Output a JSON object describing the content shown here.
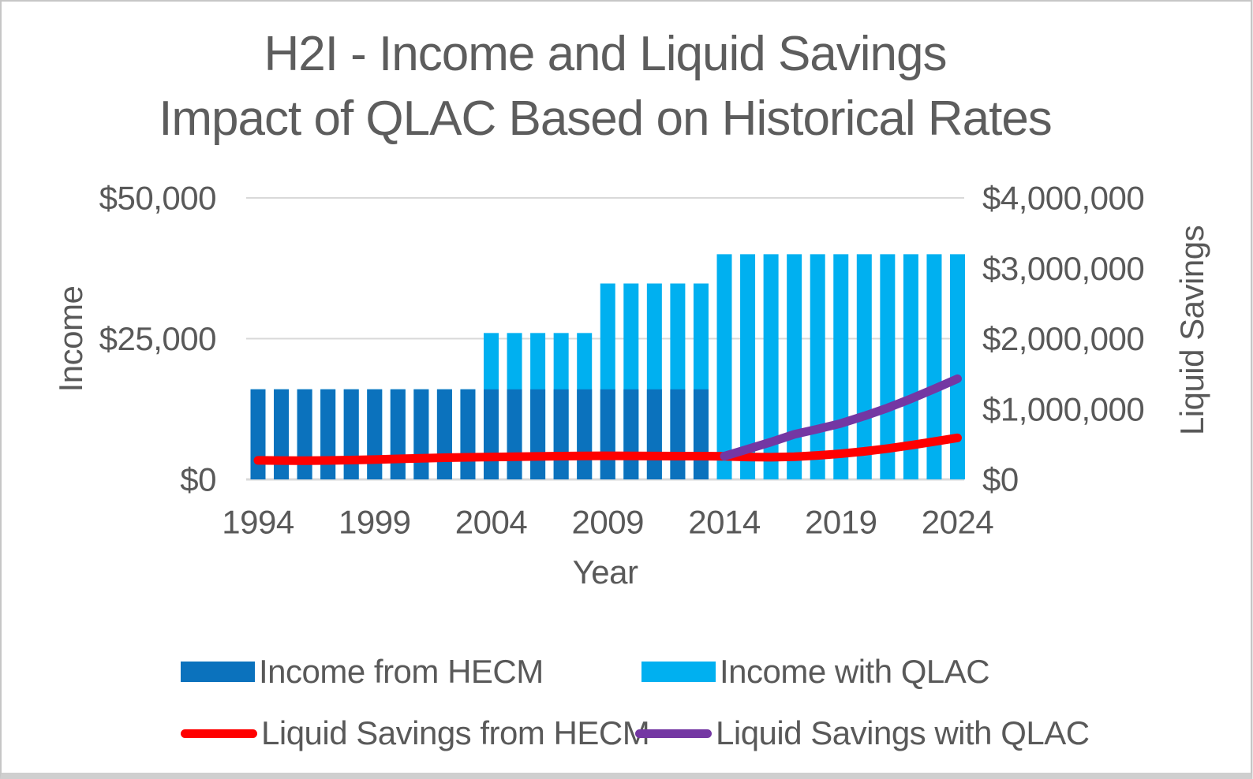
{
  "title": {
    "line1": "H2I - Income and Liquid Savings",
    "line2": "Impact of QLAC Based on Historical Rates"
  },
  "chart_data": {
    "type": "combo-bar-line",
    "title": "H2I - Income and Liquid Savings Impact of QLAC Based on Historical Rates",
    "grid": "horizontal-only",
    "legend_position": "bottom",
    "x": {
      "label": "Year",
      "years": [
        1994,
        1995,
        1996,
        1997,
        1998,
        1999,
        2000,
        2001,
        2002,
        2003,
        2004,
        2005,
        2006,
        2007,
        2008,
        2009,
        2010,
        2011,
        2012,
        2013,
        2014,
        2015,
        2016,
        2017,
        2018,
        2019,
        2020,
        2021,
        2022,
        2023,
        2024
      ],
      "tick_years": [
        1994,
        1999,
        2004,
        2009,
        2014,
        2019,
        2024
      ]
    },
    "y_left": {
      "label": "Income",
      "range": [
        0,
        50000
      ],
      "gridline_values": [
        0,
        25000,
        50000
      ],
      "ticks": [
        {
          "value": 0,
          "label": "$0"
        },
        {
          "value": 25000,
          "label": "$25,000"
        },
        {
          "value": 50000,
          "label": "$50,000"
        }
      ]
    },
    "y_right": {
      "label": "Liquid Savings",
      "range": [
        0,
        4000000
      ],
      "ticks": [
        {
          "value": 0,
          "label": "$0"
        },
        {
          "value": 1000000,
          "label": "$1,000,000"
        },
        {
          "value": 2000000,
          "label": "$2,000,000"
        },
        {
          "value": 3000000,
          "label": "$3,000,000"
        },
        {
          "value": 4000000,
          "label": "$4,000,000"
        }
      ]
    },
    "series": [
      {
        "name": "Income from HECM",
        "type": "bar",
        "axis": "left",
        "color": "#0B72BD",
        "values": [
          16000,
          16000,
          16000,
          16000,
          16000,
          16000,
          16000,
          16000,
          16000,
          16000,
          16000,
          16000,
          16000,
          16000,
          16000,
          16000,
          16000,
          16000,
          16000,
          16000,
          0,
          0,
          0,
          0,
          0,
          0,
          0,
          0,
          0,
          0,
          0
        ]
      },
      {
        "name": "Income with QLAC",
        "type": "bar",
        "axis": "left",
        "color": "#00B0F0",
        "values": [
          16000,
          16000,
          16000,
          16000,
          16000,
          16000,
          16000,
          16000,
          16000,
          16000,
          26000,
          26000,
          26000,
          26000,
          26000,
          34800,
          34800,
          34800,
          34800,
          34800,
          40000,
          40000,
          40000,
          40000,
          40000,
          40000,
          40000,
          40000,
          40000,
          40000,
          40000
        ]
      },
      {
        "name": "Liquid Savings from HECM",
        "type": "line",
        "axis": "right",
        "color": "#FF0000",
        "values": [
          270000,
          267000,
          266000,
          269000,
          274000,
          282000,
          291000,
          300000,
          308000,
          314000,
          318000,
          322000,
          327000,
          331000,
          334000,
          335000,
          334000,
          332000,
          331000,
          330000,
          328000,
          318000,
          315000,
          322000,
          340000,
          365000,
          398000,
          438000,
          485000,
          537000,
          590000
        ]
      },
      {
        "name": "Liquid Savings with QLAC",
        "type": "line",
        "axis": "right",
        "color": "#7437A3",
        "values": [
          null,
          null,
          null,
          null,
          null,
          null,
          null,
          null,
          null,
          null,
          null,
          null,
          null,
          null,
          null,
          null,
          null,
          null,
          null,
          null,
          330000,
          430000,
          530000,
          640000,
          715000,
          795000,
          900000,
          1015000,
          1145000,
          1285000,
          1430000
        ]
      }
    ]
  },
  "legend": {
    "items": [
      {
        "label": "Income from HECM",
        "shape": "bar",
        "color": "#0B72BD"
      },
      {
        "label": "Income with QLAC",
        "shape": "bar",
        "color": "#00B0F0"
      },
      {
        "label": "Liquid Savings from HECM",
        "shape": "line",
        "color": "#FF0000"
      },
      {
        "label": "Liquid Savings with QLAC",
        "shape": "line",
        "color": "#7437A3"
      }
    ]
  },
  "style": {
    "text_color": "#595959",
    "gridline_color": "#D9D9D9",
    "background": "#FFFFFF"
  }
}
